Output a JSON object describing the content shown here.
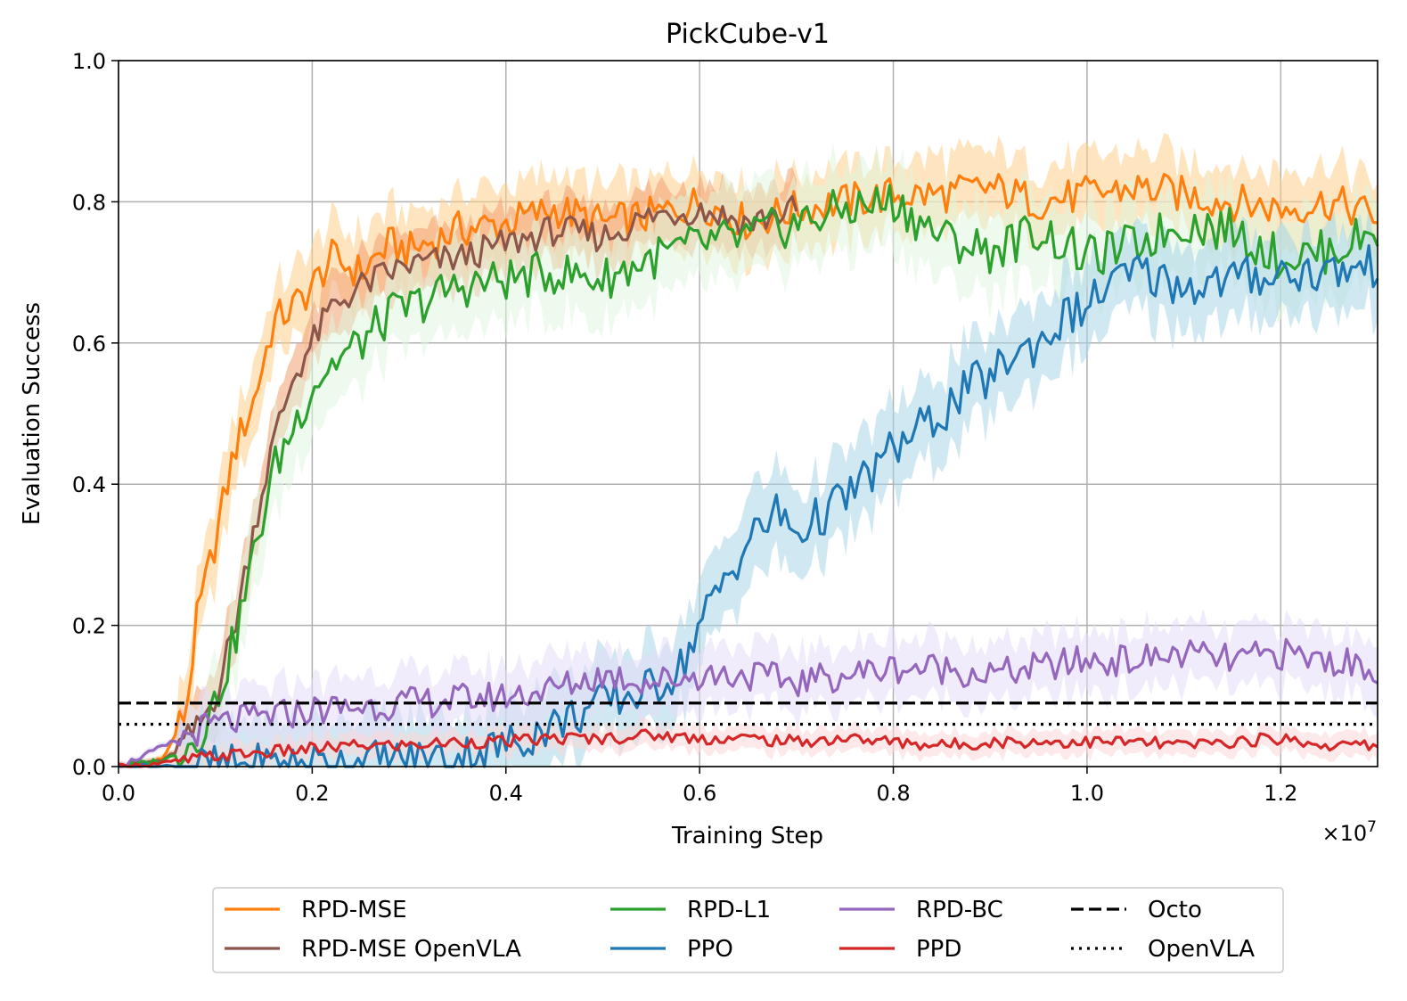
{
  "chart_data": {
    "type": "line",
    "title": "PickCube-v1",
    "xlabel": "Training Step",
    "ylabel": "Evaluation Success",
    "x_scale_label": "×10",
    "x_scale_exponent": "7",
    "xlim": [
      0.0,
      1.3
    ],
    "ylim": [
      0.0,
      1.0
    ],
    "grid": true,
    "x_ticks": [
      0.0,
      0.2,
      0.4,
      0.6,
      0.8,
      1.0,
      1.2
    ],
    "y_ticks": [
      0.0,
      0.2,
      0.4,
      0.6,
      0.8,
      1.0
    ],
    "x_tick_labels": [
      "0.0",
      "0.2",
      "0.4",
      "0.6",
      "0.8",
      "1.0",
      "1.2"
    ],
    "y_tick_labels": [
      "0.0",
      "0.2",
      "0.4",
      "0.6",
      "0.8",
      "1.0"
    ],
    "legend_position": "bottom-outside",
    "series": [
      {
        "name": "RPD-MSE",
        "color": "#ff7f0e",
        "band_color": "#ffd08a",
        "band": 0.06,
        "x": [
          0.0,
          0.03,
          0.05,
          0.07,
          0.08,
          0.1,
          0.12,
          0.14,
          0.16,
          0.18,
          0.2,
          0.22,
          0.25,
          0.28,
          0.3,
          0.35,
          0.4,
          0.45,
          0.5,
          0.55,
          0.6,
          0.65,
          0.7,
          0.75,
          0.8,
          0.85,
          0.9,
          0.95,
          1.0,
          1.05,
          1.1,
          1.15,
          1.2,
          1.25,
          1.3
        ],
        "y": [
          0.0,
          0.0,
          0.02,
          0.08,
          0.2,
          0.32,
          0.45,
          0.52,
          0.63,
          0.65,
          0.68,
          0.72,
          0.7,
          0.74,
          0.73,
          0.76,
          0.77,
          0.79,
          0.77,
          0.78,
          0.8,
          0.77,
          0.79,
          0.8,
          0.81,
          0.81,
          0.82,
          0.8,
          0.81,
          0.82,
          0.81,
          0.8,
          0.79,
          0.8,
          0.78
        ]
      },
      {
        "name": "RPD-MSE OpenVLA",
        "color": "#8c564b",
        "band_color": "#f0a070",
        "band": 0.05,
        "x": [
          0.0,
          0.05,
          0.08,
          0.1,
          0.12,
          0.14,
          0.16,
          0.18,
          0.2,
          0.22,
          0.25,
          0.28,
          0.3,
          0.35,
          0.4,
          0.45,
          0.5,
          0.55,
          0.6,
          0.65,
          0.7
        ],
        "y": [
          0.0,
          0.01,
          0.05,
          0.1,
          0.2,
          0.34,
          0.46,
          0.55,
          0.6,
          0.65,
          0.68,
          0.7,
          0.71,
          0.72,
          0.74,
          0.76,
          0.75,
          0.78,
          0.79,
          0.77,
          0.79
        ]
      },
      {
        "name": "RPD-L1",
        "color": "#2ca02c",
        "band_color": "#dff5df",
        "band": 0.07,
        "x": [
          0.0,
          0.05,
          0.08,
          0.1,
          0.12,
          0.14,
          0.16,
          0.18,
          0.2,
          0.22,
          0.25,
          0.28,
          0.3,
          0.35,
          0.4,
          0.45,
          0.5,
          0.55,
          0.6,
          0.65,
          0.7,
          0.75,
          0.8,
          0.85,
          0.9,
          0.95,
          1.0,
          1.05,
          1.1,
          1.15,
          1.2,
          1.25,
          1.3
        ],
        "y": [
          0.0,
          0.01,
          0.04,
          0.09,
          0.18,
          0.3,
          0.42,
          0.48,
          0.54,
          0.57,
          0.6,
          0.64,
          0.65,
          0.68,
          0.69,
          0.7,
          0.69,
          0.72,
          0.74,
          0.75,
          0.77,
          0.79,
          0.8,
          0.75,
          0.73,
          0.76,
          0.72,
          0.74,
          0.77,
          0.76,
          0.72,
          0.73,
          0.76
        ]
      },
      {
        "name": "PPO",
        "color": "#1f77b4",
        "band_color": "#a9d6e5",
        "band": 0.07,
        "x": [
          0.0,
          0.1,
          0.2,
          0.3,
          0.35,
          0.4,
          0.45,
          0.5,
          0.55,
          0.58,
          0.6,
          0.62,
          0.65,
          0.68,
          0.7,
          0.72,
          0.75,
          0.78,
          0.8,
          0.82,
          0.85,
          0.88,
          0.9,
          0.92,
          0.95,
          0.98,
          1.0,
          1.02,
          1.05,
          1.08,
          1.1,
          1.15,
          1.2,
          1.25,
          1.3
        ],
        "y": [
          0.0,
          0.0,
          0.005,
          0.01,
          0.015,
          0.03,
          0.06,
          0.09,
          0.11,
          0.14,
          0.2,
          0.25,
          0.32,
          0.36,
          0.33,
          0.35,
          0.38,
          0.42,
          0.45,
          0.47,
          0.5,
          0.54,
          0.55,
          0.58,
          0.6,
          0.64,
          0.65,
          0.68,
          0.7,
          0.69,
          0.68,
          0.69,
          0.7,
          0.7,
          0.71
        ]
      },
      {
        "name": "RPD-BC",
        "color": "#9467bd",
        "band_color": "#e6dcf7",
        "band": 0.05,
        "x": [
          0.0,
          0.05,
          0.08,
          0.1,
          0.15,
          0.2,
          0.25,
          0.3,
          0.35,
          0.4,
          0.45,
          0.5,
          0.55,
          0.6,
          0.65,
          0.7,
          0.75,
          0.8,
          0.85,
          0.9,
          0.95,
          1.0,
          1.05,
          1.1,
          1.15,
          1.2,
          1.25,
          1.3
        ],
        "y": [
          0.0,
          0.03,
          0.05,
          0.06,
          0.07,
          0.08,
          0.085,
          0.09,
          0.095,
          0.1,
          0.11,
          0.13,
          0.12,
          0.13,
          0.13,
          0.12,
          0.13,
          0.14,
          0.14,
          0.13,
          0.14,
          0.15,
          0.15,
          0.16,
          0.15,
          0.16,
          0.15,
          0.14
        ]
      },
      {
        "name": "PPD",
        "color": "#d62728",
        "band_color": "#fbd7d7",
        "band": 0.02,
        "x": [
          0.0,
          0.05,
          0.1,
          0.15,
          0.2,
          0.25,
          0.3,
          0.35,
          0.4,
          0.45,
          0.5,
          0.55,
          0.6,
          0.65,
          0.7,
          0.75,
          0.8,
          0.85,
          0.9,
          0.95,
          1.0,
          1.05,
          1.1,
          1.15,
          1.2,
          1.25,
          1.3
        ],
        "y": [
          0.0,
          0.005,
          0.015,
          0.02,
          0.025,
          0.03,
          0.03,
          0.035,
          0.035,
          0.04,
          0.04,
          0.045,
          0.04,
          0.04,
          0.035,
          0.04,
          0.035,
          0.03,
          0.035,
          0.035,
          0.035,
          0.035,
          0.03,
          0.035,
          0.04,
          0.03,
          0.03
        ]
      },
      {
        "name": "Octo",
        "color": "#000000",
        "style": "dashed",
        "constant": 0.09
      },
      {
        "name": "OpenVLA",
        "color": "#000000",
        "style": "dotted",
        "constant": 0.06
      }
    ]
  }
}
